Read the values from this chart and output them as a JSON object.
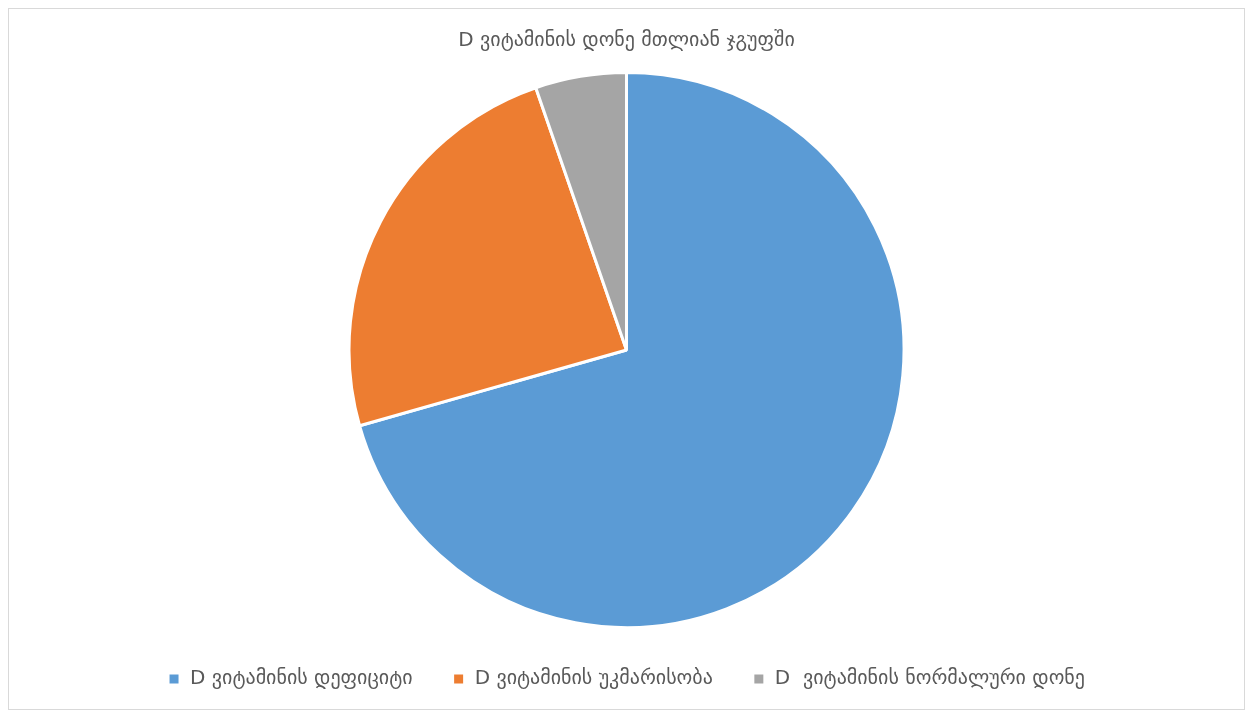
{
  "chart_data": {
    "type": "pie",
    "title": "D ვიტამინის დონე მთლიან ჯგუფში",
    "categories": [
      "D ვიტამინის დეფიციტი",
      "D ვიტამინის უკმარისობა",
      "D  ვიტამინის ნორმალური დონე"
    ],
    "values": [
      70.6,
      24.1,
      5.3
    ],
    "colors": [
      "#5b9bd5",
      "#ed7d31",
      "#a5a5a5"
    ],
    "legend": "bottom"
  }
}
